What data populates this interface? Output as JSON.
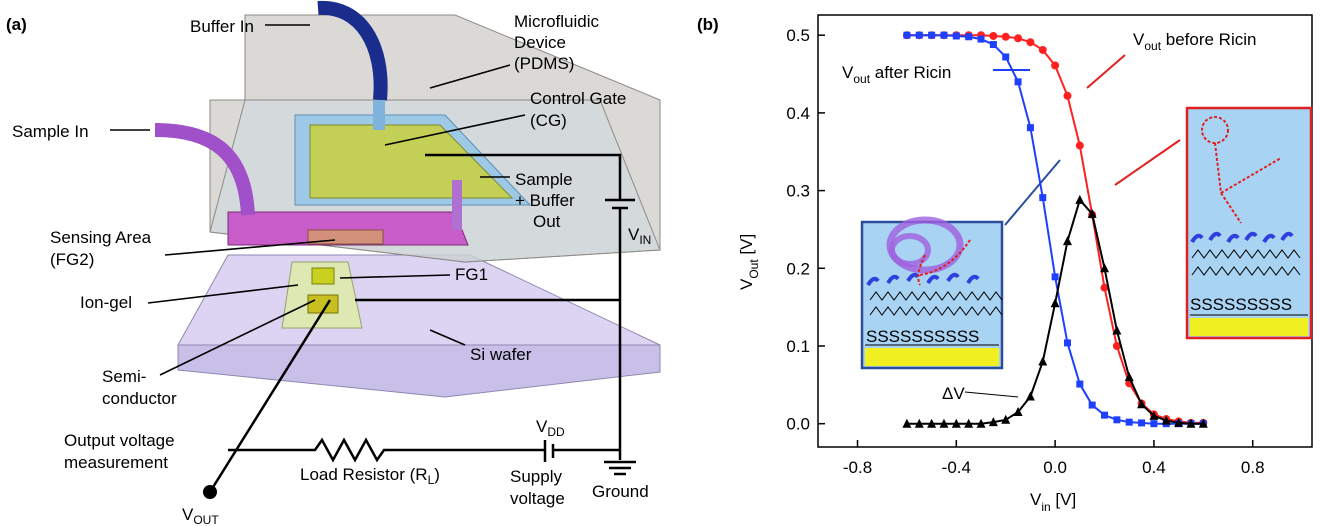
{
  "panel_a": {
    "label": "(a)",
    "buffer_in": "Buffer In",
    "device": [
      "Microfluidic",
      "Device",
      "(PDMS)"
    ],
    "control_gate": [
      "Control Gate",
      "(CG)"
    ],
    "sample_in": "Sample In",
    "sample_out": [
      "Sample",
      "+ Buffer",
      "Out"
    ],
    "v_in": {
      "main": "V",
      "sub": "IN"
    },
    "sensing_area": [
      "Sensing Area",
      "(FG2)"
    ],
    "fg1": "FG1",
    "ion_gel": "Ion-gel",
    "si_wafer": "Si wafer",
    "semiconductor": [
      "Semi-",
      "conductor"
    ],
    "output_measurement": [
      "Output voltage",
      "measurement"
    ],
    "v_dd": {
      "main": "V",
      "sub": "DD"
    },
    "load_resistor": {
      "main": "Load Resistor (R",
      "sub": "L",
      "end": ")"
    },
    "supply_voltage": [
      "Supply",
      "voltage"
    ],
    "ground": "Ground",
    "v_out": {
      "main": "V",
      "sub": "OUT"
    }
  },
  "chart_data": {
    "type": "line",
    "panel_label": "(b)",
    "x_label": {
      "main": "V",
      "sub": "in",
      "end": " [V]"
    },
    "y_label": {
      "main": "V",
      "sub": "Out",
      "end": " [V]"
    },
    "xlim": [
      -0.96,
      1.04
    ],
    "ylim": [
      -0.03,
      0.526
    ],
    "xticks": [
      -0.8,
      -0.4,
      {
        "value": 0,
        "label": "0.0"
      },
      0.4,
      0.8
    ],
    "yticks": [
      {
        "value": 0,
        "label": "0.0"
      },
      0.1,
      0.2,
      0.3,
      0.4,
      0.5
    ],
    "x": [
      -0.6,
      -0.55,
      -0.5,
      -0.45,
      -0.4,
      -0.35,
      -0.3,
      -0.25,
      -0.2,
      -0.15,
      -0.1,
      -0.05,
      0,
      0.05,
      0.1,
      0.15,
      0.2,
      0.25,
      0.3,
      0.35,
      0.4,
      0.45,
      0.5,
      0.55,
      0.6
    ],
    "series": [
      {
        "name": {
          "main": "V",
          "sub": "out",
          "end": " before Ricin"
        },
        "color": "#ff2020",
        "marker": "circle",
        "values": [
          0.5,
          0.5,
          0.5,
          0.5,
          0.5,
          0.5,
          0.5,
          0.499,
          0.498,
          0.496,
          0.491,
          0.481,
          0.461,
          0.422,
          0.358,
          0.269,
          0.175,
          0.1,
          0.052,
          0.026,
          0.012,
          0.006,
          0.003,
          0.001,
          0.001
        ]
      },
      {
        "name": {
          "main": "V",
          "sub": "out",
          "end": " after Ricin"
        },
        "color": "#1f3fff",
        "marker": "square",
        "values": [
          0.5,
          0.5,
          0.5,
          0.5,
          0.499,
          0.498,
          0.495,
          0.488,
          0.472,
          0.44,
          0.381,
          0.291,
          0.189,
          0.104,
          0.051,
          0.024,
          0.011,
          0.005,
          0.002,
          0.001,
          0,
          0,
          0,
          0,
          0
        ]
      },
      {
        "name": "ΔV",
        "color": "#000000",
        "marker": "triangle",
        "values": [
          0,
          0,
          0,
          0,
          0,
          0,
          0,
          0.002,
          0.005,
          0.015,
          0.035,
          0.08,
          0.155,
          0.235,
          0.288,
          0.27,
          0.2,
          0.12,
          0.06,
          0.025,
          0.01,
          0.004,
          0.001,
          0,
          0
        ]
      }
    ],
    "insets": [
      "SSSSSSSSSS",
      "SSSSSSSSS"
    ]
  }
}
